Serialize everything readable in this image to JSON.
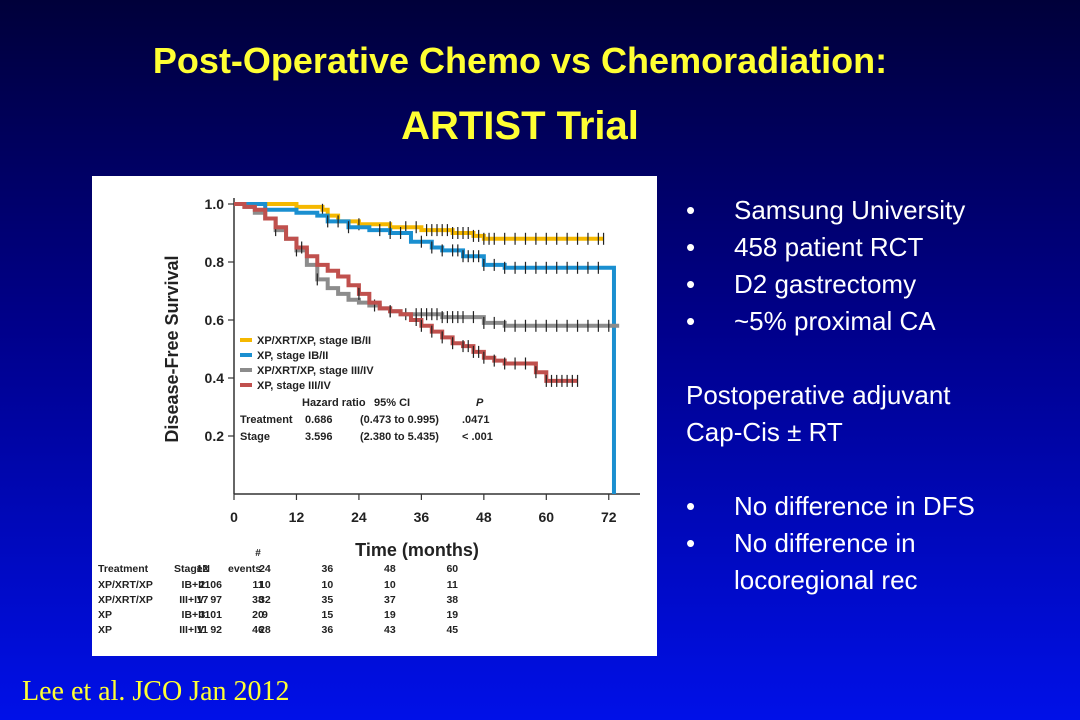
{
  "slide": {
    "title_line1": "Post-Operative Chemo vs Chemoradiation:",
    "title_line2": "ARTIST Trial",
    "citation": "Lee et al. JCO Jan 2012",
    "colors": {
      "title": "#ffff33",
      "body_text": "#ffffff",
      "background_top": "#00003a",
      "background_bottom": "#0010e8"
    }
  },
  "bullets_top": [
    "Samsung University",
    "458 patient RCT",
    "D2 gastrectomy",
    "~5% proximal CA"
  ],
  "paragraph": [
    "Postoperative adjuvant",
    "Cap-Cis ± RT"
  ],
  "bullets_bottom": [
    "No difference in DFS",
    "No difference in",
    "locoregional rec"
  ],
  "chart_data": {
    "type": "line",
    "ylabel": "Disease-Free Survival",
    "xlabel": "Time (months)",
    "xlim": [
      0,
      78
    ],
    "ylim": [
      0,
      1.0
    ],
    "x_ticks": [
      0,
      12,
      24,
      36,
      48,
      60,
      72
    ],
    "y_ticks": [
      0.2,
      0.4,
      0.6,
      0.8,
      1.0
    ],
    "x_tick_labels": [
      "0",
      "12",
      "24",
      "36",
      "48",
      "60",
      "72"
    ],
    "y_tick_labels": [
      "0.2",
      "0.4",
      "0.6",
      "0.8",
      "1.0"
    ],
    "legend_position": "bottom-left",
    "series": [
      {
        "name": "XP/XRT/XP, stage IB/II",
        "color": "#f5b800",
        "points": [
          [
            0,
            1.0
          ],
          [
            4,
            1.0
          ],
          [
            12,
            0.99
          ],
          [
            17,
            0.98
          ],
          [
            18,
            0.96
          ],
          [
            20,
            0.94
          ],
          [
            24,
            0.93
          ],
          [
            30,
            0.92
          ],
          [
            36,
            0.91
          ],
          [
            42,
            0.9
          ],
          [
            46,
            0.89
          ],
          [
            48,
            0.88
          ],
          [
            56,
            0.88
          ],
          [
            60,
            0.88
          ],
          [
            66,
            0.88
          ],
          [
            71,
            0.88
          ]
        ],
        "censor_x": [
          17,
          24,
          30,
          33,
          35,
          37,
          38,
          39,
          40,
          41,
          42,
          43,
          44,
          45,
          46,
          47,
          48,
          49,
          50,
          52,
          54,
          56,
          58,
          60,
          62,
          64,
          66,
          68,
          70,
          71
        ]
      },
      {
        "name": "XP, stage IB/II",
        "color": "#1a8fd0",
        "points": [
          [
            0,
            1.0
          ],
          [
            6,
            0.98
          ],
          [
            12,
            0.97
          ],
          [
            16,
            0.96
          ],
          [
            18,
            0.94
          ],
          [
            22,
            0.92
          ],
          [
            26,
            0.91
          ],
          [
            30,
            0.9
          ],
          [
            34,
            0.87
          ],
          [
            38,
            0.85
          ],
          [
            40,
            0.84
          ],
          [
            44,
            0.82
          ],
          [
            48,
            0.79
          ],
          [
            52,
            0.78
          ],
          [
            60,
            0.78
          ],
          [
            66,
            0.78
          ],
          [
            73,
            0.78
          ],
          [
            73,
            0.0
          ]
        ],
        "censor_x": [
          18,
          20,
          22,
          28,
          30,
          32,
          36,
          38,
          40,
          42,
          43,
          44,
          45,
          46,
          47,
          48,
          50,
          52,
          54,
          56,
          58,
          60,
          62,
          64,
          66,
          68,
          70
        ]
      },
      {
        "name": "XP/XRT/XP, stage III/IV",
        "color": "#8c8c8c",
        "points": [
          [
            0,
            1.0
          ],
          [
            2,
            0.99
          ],
          [
            4,
            0.97
          ],
          [
            6,
            0.95
          ],
          [
            8,
            0.91
          ],
          [
            10,
            0.88
          ],
          [
            12,
            0.84
          ],
          [
            14,
            0.79
          ],
          [
            16,
            0.74
          ],
          [
            18,
            0.71
          ],
          [
            20,
            0.69
          ],
          [
            22,
            0.67
          ],
          [
            24,
            0.66
          ],
          [
            26,
            0.65
          ],
          [
            28,
            0.64
          ],
          [
            30,
            0.63
          ],
          [
            32,
            0.62
          ],
          [
            36,
            0.62
          ],
          [
            40,
            0.61
          ],
          [
            44,
            0.61
          ],
          [
            48,
            0.59
          ],
          [
            52,
            0.58
          ],
          [
            60,
            0.58
          ],
          [
            66,
            0.58
          ],
          [
            73,
            0.58
          ],
          [
            74,
            0.58
          ]
        ],
        "censor_x": [
          8,
          12,
          16,
          27,
          30,
          33,
          35,
          36,
          37,
          38,
          39,
          40,
          41,
          42,
          43,
          44,
          46,
          48,
          50,
          52,
          54,
          56,
          58,
          60,
          62,
          64,
          66,
          68,
          70,
          72
        ]
      },
      {
        "name": "XP, stage III/IV",
        "color": "#c0504d",
        "points": [
          [
            0,
            1.0
          ],
          [
            2,
            0.99
          ],
          [
            4,
            0.98
          ],
          [
            6,
            0.95
          ],
          [
            8,
            0.92
          ],
          [
            10,
            0.88
          ],
          [
            12,
            0.85
          ],
          [
            14,
            0.82
          ],
          [
            16,
            0.79
          ],
          [
            18,
            0.77
          ],
          [
            20,
            0.75
          ],
          [
            22,
            0.72
          ],
          [
            24,
            0.69
          ],
          [
            26,
            0.66
          ],
          [
            28,
            0.64
          ],
          [
            30,
            0.63
          ],
          [
            32,
            0.62
          ],
          [
            34,
            0.6
          ],
          [
            36,
            0.58
          ],
          [
            38,
            0.56
          ],
          [
            40,
            0.54
          ],
          [
            42,
            0.52
          ],
          [
            44,
            0.51
          ],
          [
            46,
            0.49
          ],
          [
            48,
            0.47
          ],
          [
            50,
            0.46
          ],
          [
            52,
            0.45
          ],
          [
            56,
            0.45
          ],
          [
            58,
            0.42
          ],
          [
            60,
            0.39
          ],
          [
            62,
            0.39
          ],
          [
            66,
            0.39
          ]
        ],
        "censor_x": [
          13,
          24,
          30,
          35,
          36,
          38,
          40,
          42,
          44,
          45,
          46,
          47,
          48,
          50,
          52,
          54,
          56,
          58,
          60,
          61,
          62,
          63,
          64,
          65,
          66
        ]
      }
    ],
    "hazard_table": {
      "headers": [
        "",
        "Hazard ratio",
        "95% CI",
        "P"
      ],
      "rows": [
        [
          "Treatment",
          "0.686",
          "(0.473 to 0.995)",
          ".0471"
        ],
        [
          "Stage",
          "3.596",
          "(2.380 to 5.435)",
          "< .001"
        ]
      ]
    },
    "risk_table": {
      "header_top": "#",
      "headers": [
        "Treatment",
        "Stage",
        "N",
        "events",
        "12",
        "24",
        "36",
        "48",
        "60"
      ],
      "rows": [
        [
          "XP/XRT/XP",
          "IB+II",
          "106",
          "11",
          "2",
          "10",
          "10",
          "10",
          "11"
        ],
        [
          "XP/XRT/XP",
          "III+IV",
          "97",
          "38",
          "17",
          "32",
          "35",
          "37",
          "38"
        ],
        [
          "XP",
          "IB+II",
          "101",
          "20",
          "3",
          "9",
          "15",
          "19",
          "19"
        ],
        [
          "XP",
          "III+IV",
          "92",
          "46",
          "11",
          "28",
          "36",
          "43",
          "45"
        ]
      ]
    }
  }
}
